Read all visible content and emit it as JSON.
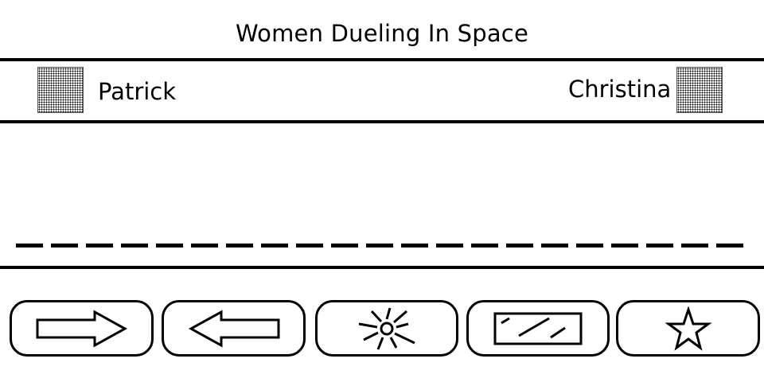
{
  "game": {
    "title": "Women Dueling In Space"
  },
  "players": {
    "left": {
      "name": "Patrick"
    },
    "right": {
      "name": "Christina"
    }
  },
  "actions": [
    {
      "icon": "right-arrow-icon"
    },
    {
      "icon": "left-arrow-icon"
    },
    {
      "icon": "burst-icon"
    },
    {
      "icon": "shield-icon"
    },
    {
      "icon": "star-icon"
    }
  ]
}
